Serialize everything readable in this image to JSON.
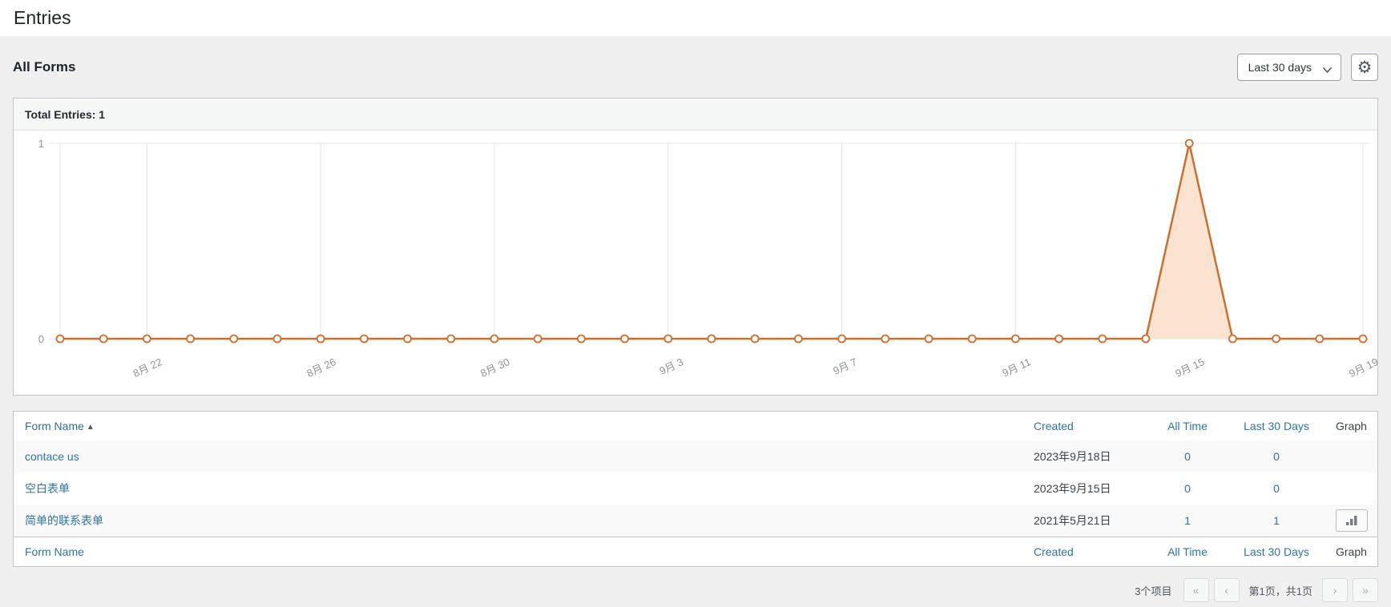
{
  "page": {
    "title": "Entries"
  },
  "toolbar": {
    "heading": "All Forms",
    "range_select_value": "Last 30 days"
  },
  "chart_panel": {
    "total_label": "Total Entries: 1"
  },
  "chart_data": {
    "type": "line",
    "title": "Total Entries: 1",
    "series": [
      {
        "name": "Entries",
        "color": "#cd6e2d",
        "fill_color": "#fae4d0"
      }
    ],
    "x": [
      "8月20",
      "8月21",
      "8月22",
      "8月23",
      "8月24",
      "8月25",
      "8月26",
      "8月27",
      "8月28",
      "8月29",
      "8月30",
      "8月31",
      "9月1",
      "9月2",
      "9月3",
      "9月4",
      "9月5",
      "9月6",
      "9月7",
      "9月8",
      "9月9",
      "9月10",
      "9月11",
      "9月12",
      "9月13",
      "9月14",
      "9月15",
      "9月16",
      "9月17",
      "9月18",
      "9月19"
    ],
    "values": [
      0,
      0,
      0,
      0,
      0,
      0,
      0,
      0,
      0,
      0,
      0,
      0,
      0,
      0,
      0,
      0,
      0,
      0,
      0,
      0,
      0,
      0,
      0,
      0,
      0,
      0,
      1,
      0,
      0,
      0,
      0
    ],
    "x_tick_indices": [
      2,
      6,
      10,
      14,
      18,
      22,
      26,
      30
    ],
    "x_tick_labels": [
      "8月 22",
      "8月 26",
      "8月 30",
      "9月 3",
      "9月 7",
      "9月 11",
      "9月 15",
      "9月 19"
    ],
    "grid_indices": [
      0,
      2,
      6,
      10,
      14,
      18,
      22,
      26,
      30
    ],
    "y_ticks": [
      "0",
      "1"
    ],
    "ylim": [
      0,
      1
    ],
    "grid": true,
    "legend": "none",
    "grid_color": "#e3e3e3",
    "tick_color": "#8f9499"
  },
  "table": {
    "headers": {
      "form_name": "Form Name",
      "created": "Created",
      "all_time": "All Time",
      "last_30_days": "Last 30 Days",
      "graph": "Graph"
    },
    "sort": {
      "column": "form_name",
      "direction": "asc",
      "arrow": "▲"
    },
    "rows": [
      {
        "name": "contace us",
        "created": "2023年9月18日",
        "all_time": "0",
        "last_30_days": "0"
      },
      {
        "name": "空白表单",
        "created": "2023年9月15日",
        "all_time": "0",
        "last_30_days": "0"
      },
      {
        "name": "简单的联系表单",
        "created": "2021年5月21日",
        "all_time": "1",
        "last_30_days": "1"
      }
    ]
  },
  "pagination": {
    "items_count": "3个项目",
    "first_label": "«",
    "prev_label": "‹",
    "page_status": "第1页，共1页",
    "next_label": "›",
    "last_label": "»"
  }
}
